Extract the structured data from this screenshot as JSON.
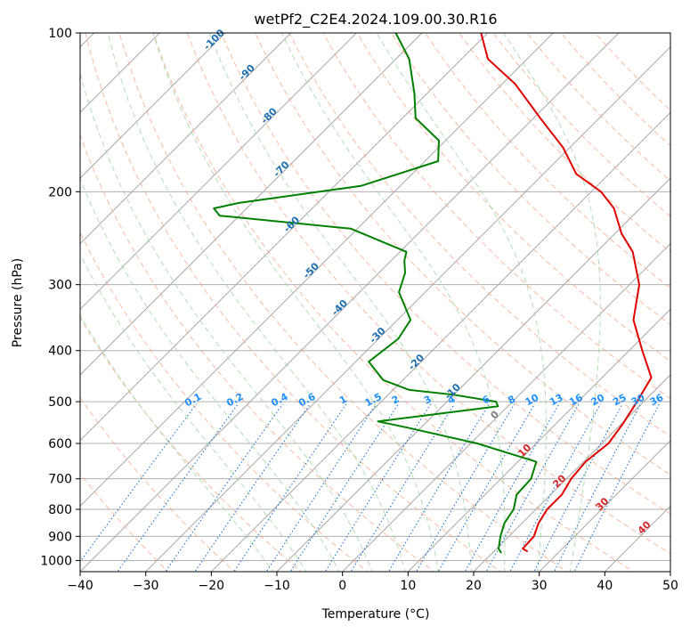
{
  "chart_data": {
    "type": "line",
    "chart_kind": "skew-T log-P diagram",
    "title": "wetPf2_C2E4.2024.109.00.30.R16",
    "xlabel": "Temperature (°C)",
    "ylabel": "Pressure (hPa)",
    "xlim": [
      -40,
      50
    ],
    "ylim": [
      1050,
      100
    ],
    "y_scale": "log",
    "x_ticks": [
      -40,
      -30,
      -20,
      -10,
      0,
      10,
      20,
      30,
      40,
      50
    ],
    "y_ticks": [
      100,
      200,
      300,
      400,
      500,
      600,
      700,
      800,
      900,
      1000
    ],
    "grid": true,
    "colors": {
      "temperature": "#e00000",
      "dewpoint": "#008000",
      "dry_adiabat": "#f4a582",
      "moist_adiabat": "#9fd79f",
      "mixing_ratio": "#1f77d4",
      "isotherm": "#9a9a9a",
      "axis": "#000000"
    },
    "series": [
      {
        "name": "Temperature",
        "points": [
          [
            25.0,
            960
          ],
          [
            24.0,
            950
          ],
          [
            23.8,
            900
          ],
          [
            22.5,
            850
          ],
          [
            21.7,
            800
          ],
          [
            21.7,
            750
          ],
          [
            20.7,
            700
          ],
          [
            20.3,
            650
          ],
          [
            21.0,
            600
          ],
          [
            20.2,
            550
          ],
          [
            19.0,
            500
          ],
          [
            17.5,
            450
          ],
          [
            12.0,
            400
          ],
          [
            6.0,
            350
          ],
          [
            1.5,
            300
          ],
          [
            -4.5,
            260
          ],
          [
            -9.0,
            240
          ],
          [
            -14.0,
            215
          ],
          [
            -18.5,
            200
          ],
          [
            -25.0,
            185
          ],
          [
            -31.0,
            165
          ],
          [
            -39.0,
            145
          ],
          [
            -48.0,
            125
          ],
          [
            -56.0,
            112
          ],
          [
            -61.0,
            100
          ]
        ]
      },
      {
        "name": "Dewpoint",
        "points": [
          [
            21.2,
            965
          ],
          [
            20.3,
            950
          ],
          [
            18.7,
            900
          ],
          [
            17.3,
            850
          ],
          [
            16.6,
            800
          ],
          [
            14.8,
            750
          ],
          [
            14.6,
            700
          ],
          [
            12.8,
            650
          ],
          [
            1.0,
            600
          ],
          [
            -12.0,
            560
          ],
          [
            -17.5,
            545
          ],
          [
            -1.5,
            510
          ],
          [
            -2.5,
            500
          ],
          [
            -10.0,
            485
          ],
          [
            -17.5,
            475
          ],
          [
            -23.0,
            455
          ],
          [
            -28.0,
            420
          ],
          [
            -27.0,
            380
          ],
          [
            -28.0,
            350
          ],
          [
            -34.0,
            310
          ],
          [
            -36.0,
            285
          ],
          [
            -38.0,
            270
          ],
          [
            -39.0,
            260
          ],
          [
            -51.0,
            235
          ],
          [
            -73.0,
            222
          ],
          [
            -75.0,
            215
          ],
          [
            -72.0,
            210
          ],
          [
            -56.0,
            195
          ],
          [
            -48.0,
            175
          ],
          [
            -51.0,
            160
          ],
          [
            -58.0,
            145
          ],
          [
            -62.0,
            130
          ],
          [
            -68.0,
            112
          ],
          [
            -74.0,
            100
          ]
        ]
      }
    ],
    "dry_adiabats_c": [
      -30,
      -20,
      -10,
      0,
      10,
      20,
      30,
      40,
      50,
      60,
      70,
      80,
      90,
      100,
      110,
      120,
      130,
      140,
      150,
      160,
      170
    ],
    "moist_adiabats_c": [
      -10,
      -5,
      0,
      5,
      10,
      15,
      20,
      25,
      30,
      35
    ],
    "mixing_ratio_lines_gkg": [
      0.1,
      0.2,
      0.4,
      0.6,
      1,
      1.5,
      2,
      3,
      4,
      6,
      8,
      10,
      13,
      16,
      20,
      25,
      30,
      36
    ],
    "mixing_ratio_labels": [
      "0.1",
      "0.2",
      "0.4",
      "0.6",
      "1",
      "1.5",
      "2",
      "3",
      "4",
      "6",
      "8",
      "10",
      "13",
      "16",
      "20",
      "25",
      "30",
      "36"
    ],
    "isotherm_labels": {
      "blue": [
        "-100",
        "-90",
        "-80",
        "-70",
        "-60",
        "-50",
        "-40",
        "-30",
        "-20",
        "-10"
      ],
      "gray": [
        "0"
      ],
      "red": [
        "10",
        "20",
        "30",
        "40"
      ]
    },
    "annotations": {
      "blue_values": [
        -100,
        -90,
        -80,
        -70,
        -60,
        -50,
        -40,
        -30,
        -20,
        -10
      ],
      "gray_values": [
        0
      ],
      "red_values": [
        10,
        20,
        30,
        40
      ]
    }
  }
}
